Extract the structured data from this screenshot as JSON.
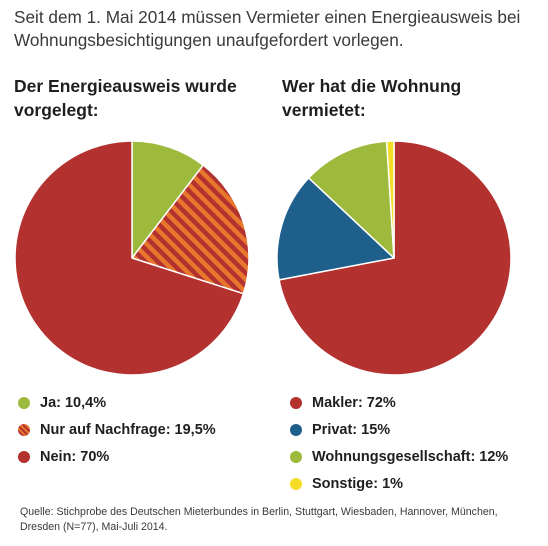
{
  "headline": "Seit dem 1. Mai 2014 müssen Vermieter einen Energieausweis bei Wohnungsbesichtigungen unaufgefordert vorlegen.",
  "source": "Quelle: Stichprobe des Deutschen Mieterbundes in Berlin, Stuttgart, Wiesbaden, Hannover, München, Dresden (N=77), Mai-Juli 2014.",
  "colors": {
    "green": "#9dba3c",
    "orange": "#e8772e",
    "red": "#b3312f",
    "blue": "#1f5f8b",
    "yellow": "#f5dc27"
  },
  "chart_data": [
    {
      "type": "pie",
      "title": "Der Energieausweis wurde vorgelegt:",
      "slices": [
        {
          "label": "Ja: 10,4%",
          "value": 10.4,
          "color": "#9dba3c",
          "pattern": "solid"
        },
        {
          "label": "Nur auf Nachfrage: 19,5%",
          "value": 19.5,
          "color": "#e8772e",
          "pattern": "stripes"
        },
        {
          "label": "Nein: 70%",
          "value": 70,
          "color": "#b3312f",
          "pattern": "solid"
        }
      ]
    },
    {
      "type": "pie",
      "title": "Wer hat die Wohnung vermietet:",
      "slices": [
        {
          "label": "Makler: 72%",
          "value": 72,
          "color": "#b3312f",
          "pattern": "solid"
        },
        {
          "label": "Privat: 15%",
          "value": 15,
          "color": "#1f5f8b",
          "pattern": "solid"
        },
        {
          "label": "Wohnungsgesellschaft: 12%",
          "value": 12,
          "color": "#9dba3c",
          "pattern": "solid"
        },
        {
          "label": "Sonstige: 1%",
          "value": 1,
          "color": "#f5dc27",
          "pattern": "solid"
        }
      ]
    }
  ]
}
